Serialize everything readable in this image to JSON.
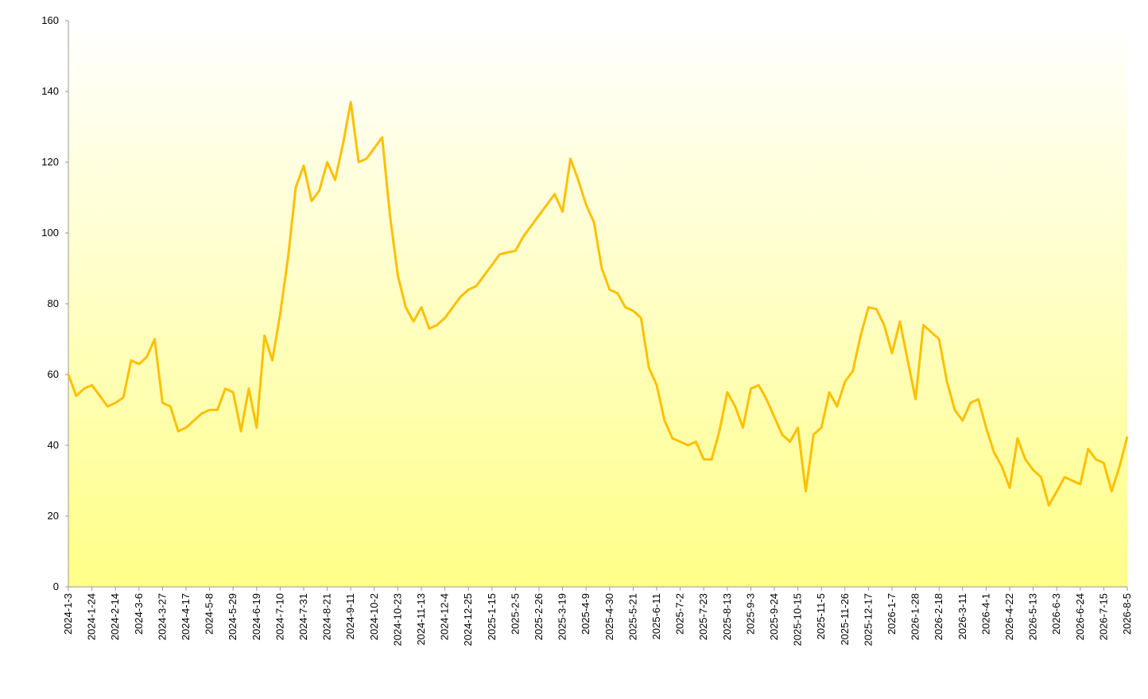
{
  "chart_data": {
    "type": "line",
    "categories": [
      "2024-1-3",
      null,
      null,
      "2024-1-24",
      null,
      null,
      "2024-2-14",
      null,
      null,
      "2024-3-6",
      null,
      null,
      "2024-3-27",
      null,
      null,
      "2024-4-17",
      null,
      null,
      "2024-5-8",
      null,
      null,
      "2024-5-29",
      null,
      null,
      "2024-6-19",
      null,
      null,
      "2024-7-10",
      null,
      null,
      "2024-7-31",
      null,
      null,
      "2024-8-21",
      null,
      null,
      "2024-9-11",
      null,
      null,
      "2024-10-2",
      null,
      null,
      "2024-10-23",
      null,
      null,
      "2024-11-13",
      null,
      null,
      "2024-12-4",
      null,
      null,
      "2024-12-25",
      null,
      null,
      "2025-1-15",
      null,
      null,
      "2025-2-5",
      null,
      null,
      "2025-2-26",
      null,
      null,
      "2025-3-19",
      null,
      null,
      "2025-4-9",
      null,
      null,
      "2025-4-30",
      null,
      null,
      "2025-5-21",
      null,
      null,
      "2025-6-11",
      null,
      null,
      "2025-7-2",
      null,
      null,
      "2025-7-23",
      null,
      null,
      "2025-8-13",
      null,
      null,
      "2025-9-3",
      null,
      null,
      "2025-9-24",
      null,
      null,
      "2025-10-15",
      null,
      null,
      "2025-11-5",
      null,
      null,
      "2025-11-26",
      null,
      null,
      "2025-12-17",
      null,
      null,
      "2026-1-7",
      null,
      null,
      "2026-1-28",
      null,
      null,
      "2026-2-18",
      null,
      null,
      "2026-3-11",
      null,
      null,
      "2026-4-1",
      null,
      null,
      "2026-4-22",
      null,
      null,
      "2026-5-13",
      null,
      null,
      "2026-6-3",
      null,
      null,
      "2026-6-24",
      null,
      null,
      "2026-7-15",
      null,
      null,
      "2026-8-5"
    ],
    "values": [
      60,
      54,
      56,
      57,
      54,
      51,
      52,
      53.5,
      64,
      63,
      65,
      70,
      52,
      51,
      44,
      45,
      47,
      49,
      50,
      50,
      56,
      55,
      44,
      56,
      45,
      71,
      64,
      77,
      93,
      113,
      119,
      109,
      112,
      120,
      115,
      125,
      137,
      120,
      121,
      124,
      127,
      105,
      88,
      79,
      75,
      79,
      73,
      74,
      76,
      79,
      82,
      84,
      85,
      88,
      91,
      94,
      94.5,
      95,
      99,
      102,
      105,
      108,
      111,
      106,
      121,
      115,
      108,
      103,
      90,
      84,
      83,
      79,
      78,
      76,
      62,
      57,
      47,
      42,
      41,
      40,
      41,
      36,
      36,
      44,
      55,
      51,
      45,
      56,
      57,
      53,
      48,
      43,
      41,
      45,
      27,
      43,
      45,
      55,
      51,
      58,
      61,
      71,
      79,
      78.5,
      74,
      66,
      75,
      64,
      53,
      74,
      72,
      70,
      58,
      50,
      47,
      52,
      53,
      45,
      38,
      34,
      28,
      42,
      36,
      33,
      31,
      23,
      27,
      31,
      30,
      29,
      39,
      36,
      35,
      27,
      34,
      42.5
    ],
    "color": "#ffc000",
    "ylim": [
      0,
      160
    ],
    "yticks": [
      0,
      20,
      40,
      60,
      80,
      100,
      120,
      140,
      160
    ]
  }
}
